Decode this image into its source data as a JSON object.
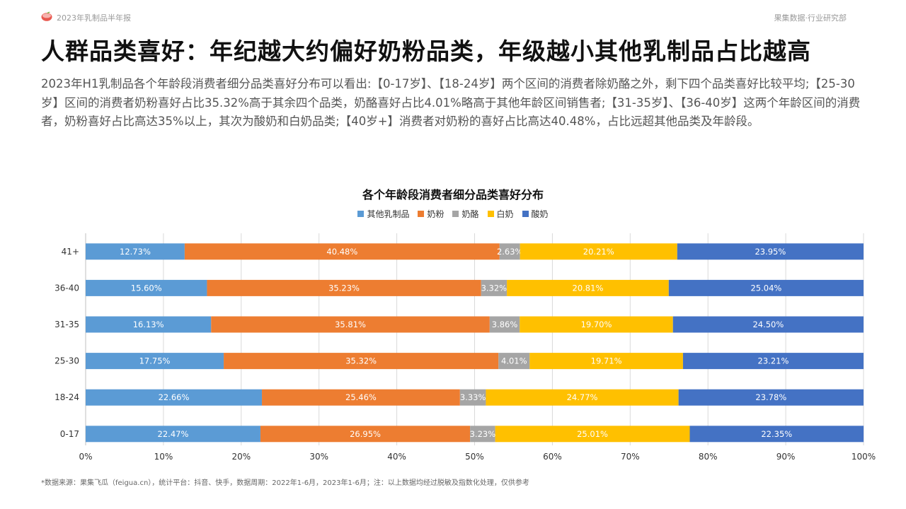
{
  "header": {
    "report_name": "2023年乳制品半年报",
    "org_name": "果集数据·行业研究部"
  },
  "headline": "人群品类喜好：年纪越大约偏好奶粉品类，年级越小其他乳制品占比越高",
  "summary": "2023年H1乳制品各个年龄段消费者细分品类喜好分布可以看出:【0-17岁】、【18-24岁】两个区间的消费者除奶酪之外，剩下四个品类喜好比较平均;【25-30岁】区间的消费者奶粉喜好占比35.32%高于其余四个品类，奶酪喜好占比4.01%略高于其他年龄区间销售者;【31-35岁】、【36-40岁】这两个年龄区间的消费者，奶粉喜好占比高达35%以上，其次为酸奶和白奶品类;【40岁+】消费者对奶粉的喜好占比高达40.48%，占比远超其他品类及年龄段。",
  "footnote": "*数据来源：果集飞瓜（feigua.cn），统计平台：抖音、快手，数据周期：2022年1-6月，2023年1-6月；注：以上数据均经过脱敏及指数化处理，仅供参考",
  "colors": {
    "accent_logo": "#e8584f",
    "logo_leaf": "#7ab648"
  },
  "chart_data": {
    "type": "bar",
    "orientation": "horizontal",
    "stacked": "percent",
    "title": "各个年龄段消费者细分品类喜好分布",
    "legend_position": "top",
    "grid": true,
    "xlim": [
      0,
      100
    ],
    "x_ticks": [
      "0%",
      "10%",
      "20%",
      "30%",
      "40%",
      "50%",
      "60%",
      "70%",
      "80%",
      "90%",
      "100%"
    ],
    "categories": [
      "41+",
      "36-40",
      "31-35",
      "25-30",
      "18-24",
      "0-17"
    ],
    "series": [
      {
        "name": "其他乳制品",
        "color": "#5b9bd5",
        "values": [
          12.73,
          15.6,
          16.13,
          17.75,
          22.66,
          22.47
        ]
      },
      {
        "name": "奶粉",
        "color": "#ed7d31",
        "values": [
          40.48,
          35.23,
          35.81,
          35.32,
          25.46,
          26.95
        ]
      },
      {
        "name": "奶酪",
        "color": "#a5a5a5",
        "values": [
          2.63,
          3.32,
          3.86,
          4.01,
          3.33,
          3.23
        ]
      },
      {
        "name": "白奶",
        "color": "#ffc000",
        "values": [
          20.21,
          20.81,
          19.7,
          19.71,
          24.77,
          25.01
        ]
      },
      {
        "name": "酸奶",
        "color": "#4472c4",
        "values": [
          23.95,
          25.04,
          24.5,
          23.21,
          23.78,
          22.35
        ]
      }
    ]
  }
}
